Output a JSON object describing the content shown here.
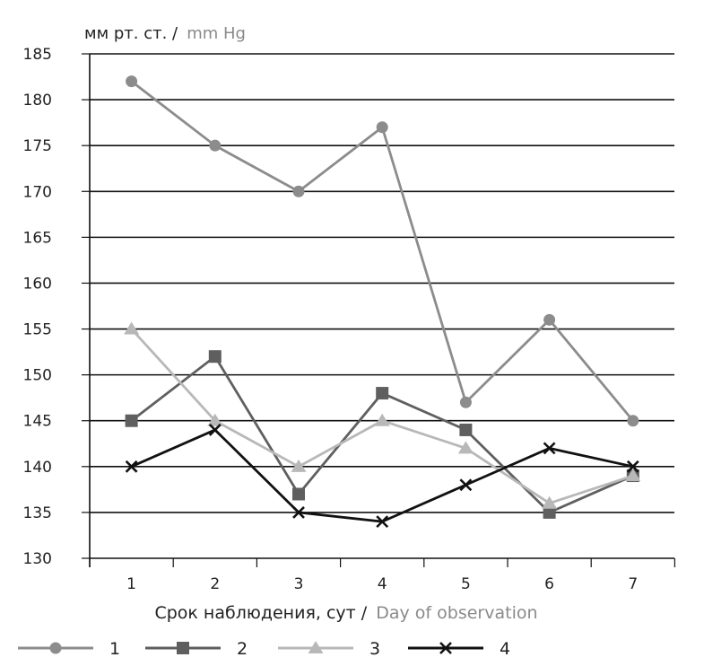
{
  "chart_data": {
    "type": "line",
    "y_unit_ru": "мм рт. ст. /",
    "y_unit_en": "mm Hg",
    "xlabel_ru": "Срок наблюдения, сут /",
    "xlabel_en": "Day of observation",
    "ylim": [
      130,
      185
    ],
    "y_ticks": [
      130,
      135,
      140,
      145,
      150,
      155,
      160,
      165,
      170,
      175,
      180,
      185
    ],
    "categories": [
      "1",
      "2",
      "3",
      "4",
      "5",
      "6",
      "7"
    ],
    "grid": "horizontal",
    "legend_position": "bottom",
    "series": [
      {
        "name": "1",
        "marker": "circle",
        "color": "#8c8c8c",
        "values": [
          182,
          175,
          170,
          177,
          147,
          156,
          145
        ]
      },
      {
        "name": "2",
        "marker": "square",
        "color": "#5f5f5f",
        "values": [
          145,
          152,
          137,
          148,
          144,
          135,
          139
        ]
      },
      {
        "name": "3",
        "marker": "triangle",
        "color": "#b8b8b8",
        "values": [
          155,
          145,
          140,
          145,
          142,
          136,
          139
        ]
      },
      {
        "name": "4",
        "marker": "x",
        "color": "#111111",
        "values": [
          140,
          144,
          135,
          134,
          138,
          142,
          140
        ]
      }
    ]
  }
}
